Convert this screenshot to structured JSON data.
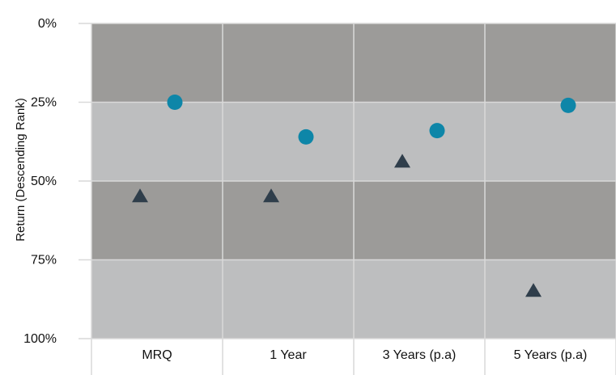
{
  "chart_data": {
    "type": "scatter",
    "title": "",
    "xlabel": "",
    "ylabel": "Return (Descending Rank)",
    "y_axis": "inverted",
    "ylim": [
      0,
      100
    ],
    "y_ticks": [
      "0%",
      "25%",
      "50%",
      "75%",
      "100%"
    ],
    "categories": [
      "MRQ",
      "1 Year",
      "3 Years (p.a)",
      "5 Years (p.a)"
    ],
    "bands": [
      {
        "from": 0,
        "to": 25,
        "color": "#9c9b99"
      },
      {
        "from": 25,
        "to": 50,
        "color": "#bdbebf"
      },
      {
        "from": 50,
        "to": 75,
        "color": "#9c9b99"
      },
      {
        "from": 75,
        "to": 100,
        "color": "#bdbebf"
      }
    ],
    "series": [
      {
        "marker": "triangle",
        "color": "#2f3e4b",
        "values": [
          55,
          55,
          44,
          85
        ]
      },
      {
        "marker": "circle",
        "color": "#0e86a8",
        "values": [
          25,
          36,
          34,
          26
        ]
      }
    ],
    "grid": true
  }
}
